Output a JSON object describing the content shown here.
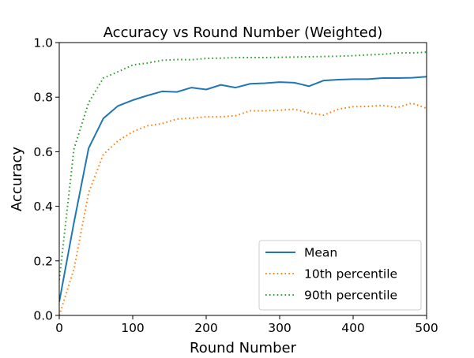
{
  "chart_data": {
    "type": "line",
    "title": "Accuracy vs Round Number (Weighted)",
    "xlabel": "Round Number",
    "ylabel": "Accuracy",
    "xlim": [
      0,
      500
    ],
    "ylim": [
      0.0,
      1.0
    ],
    "xticks": [
      0,
      100,
      200,
      300,
      400,
      500
    ],
    "xtick_labels": [
      "0",
      "100",
      "200",
      "300",
      "400",
      "500"
    ],
    "yticks": [
      0.0,
      0.2,
      0.4,
      0.6,
      0.8,
      1.0
    ],
    "ytick_labels": [
      "0.0",
      "0.2",
      "0.4",
      "0.6",
      "0.8",
      "1.0"
    ],
    "grid": false,
    "legend_position": "lower-right",
    "x": [
      0,
      20,
      40,
      60,
      80,
      100,
      120,
      140,
      160,
      180,
      200,
      220,
      240,
      260,
      280,
      300,
      320,
      340,
      360,
      380,
      400,
      420,
      440,
      460,
      480,
      500
    ],
    "series": [
      {
        "name": "Mean",
        "color": "#1f77b4",
        "style": "solid",
        "values": [
          0.05,
          0.34,
          0.613,
          0.722,
          0.768,
          0.789,
          0.806,
          0.821,
          0.819,
          0.835,
          0.828,
          0.845,
          0.835,
          0.849,
          0.851,
          0.855,
          0.853,
          0.84,
          0.861,
          0.864,
          0.866,
          0.866,
          0.87,
          0.87,
          0.871,
          0.875
        ]
      },
      {
        "name": "10th percentile",
        "color": "#ff7f0e",
        "style": "dotted",
        "values": [
          0.0,
          0.17,
          0.45,
          0.59,
          0.64,
          0.673,
          0.695,
          0.703,
          0.72,
          0.723,
          0.728,
          0.728,
          0.732,
          0.75,
          0.75,
          0.752,
          0.756,
          0.742,
          0.734,
          0.756,
          0.765,
          0.766,
          0.77,
          0.762,
          0.778,
          0.759
        ]
      },
      {
        "name": "90th percentile",
        "color": "#2ca02c",
        "style": "dotted",
        "values": [
          0.13,
          0.61,
          0.78,
          0.87,
          0.893,
          0.918,
          0.925,
          0.935,
          0.938,
          0.937,
          0.942,
          0.943,
          0.945,
          0.945,
          0.945,
          0.946,
          0.947,
          0.948,
          0.949,
          0.95,
          0.952,
          0.955,
          0.957,
          0.962,
          0.962,
          0.965
        ]
      }
    ]
  }
}
